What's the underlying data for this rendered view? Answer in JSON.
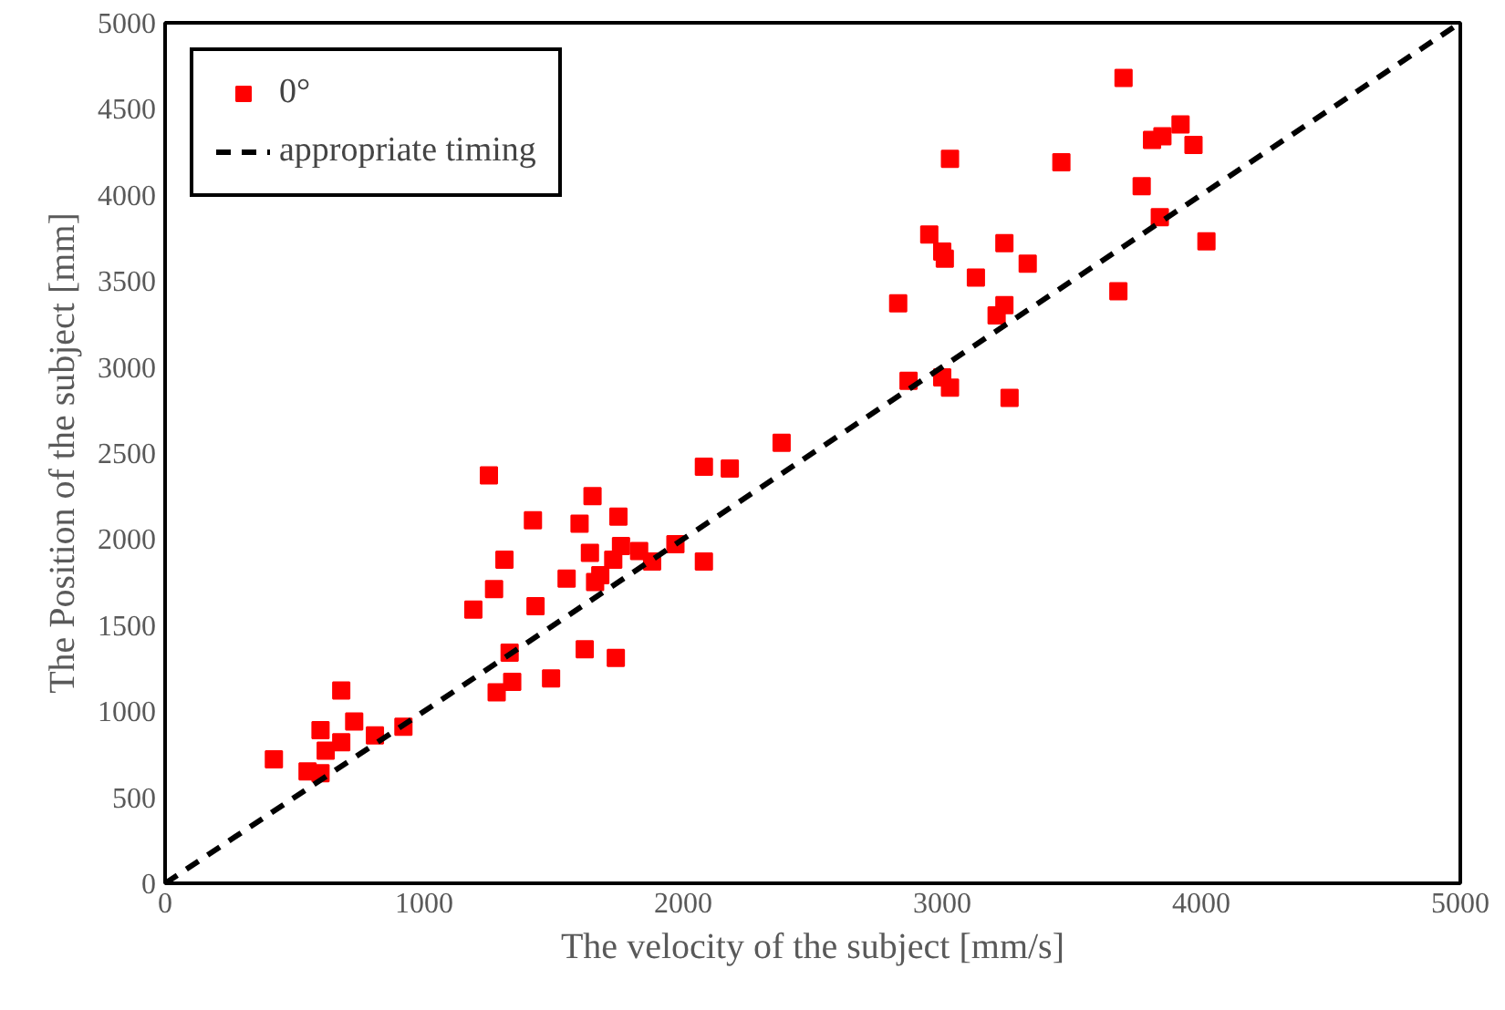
{
  "chart_data": {
    "type": "scatter",
    "xlabel": "The velocity of the subject [mm/s]",
    "ylabel": "The Position of the subject [mm]",
    "xlim": [
      0,
      5000
    ],
    "ylim": [
      0,
      5000
    ],
    "xticks": [
      0,
      1000,
      2000,
      3000,
      4000,
      5000
    ],
    "yticks": [
      0,
      500,
      1000,
      1500,
      2000,
      2500,
      3000,
      3500,
      4000,
      4500,
      5000
    ],
    "grid": false,
    "legend": "top left",
    "series": [
      {
        "name": "0°",
        "marker": "square",
        "color": "#ff0000",
        "x": [
          420,
          680,
          600,
          730,
          680,
          620,
          550,
          600,
          810,
          920,
          1280,
          1340,
          1250,
          2380,
          2080,
          2180,
          1650,
          1420,
          1600,
          1750,
          1310,
          1640,
          1760,
          1730,
          1830,
          1880,
          1970,
          2080,
          1270,
          1550,
          1680,
          1660,
          1190,
          1430,
          1330,
          1620,
          1740,
          1490,
          3700,
          3030,
          3460,
          3810,
          3850,
          3920,
          3970,
          3770,
          3840,
          4020,
          2950,
          3000,
          3010,
          3240,
          3330,
          3130,
          2830,
          3240,
          3210,
          3680,
          2870,
          3000,
          3030,
          3260
        ],
        "values": [
          720,
          1120,
          890,
          940,
          820,
          770,
          650,
          640,
          860,
          910,
          1110,
          1170,
          2370,
          2560,
          2420,
          2410,
          2250,
          2110,
          2090,
          2130,
          1880,
          1920,
          1960,
          1880,
          1930,
          1870,
          1970,
          1870,
          1710,
          1770,
          1790,
          1750,
          1590,
          1610,
          1340,
          1360,
          1310,
          1190,
          4680,
          4210,
          4190,
          4320,
          4340,
          4410,
          4290,
          4050,
          3870,
          3730,
          3770,
          3670,
          3630,
          3720,
          3600,
          3520,
          3370,
          3360,
          3300,
          3440,
          2920,
          2940,
          2880,
          2820
        ]
      },
      {
        "name": "appropriate timing",
        "type": "line",
        "line_style": "dashed",
        "color": "#000000",
        "x": [
          0,
          5000
        ],
        "values": [
          0,
          5000
        ]
      }
    ]
  }
}
